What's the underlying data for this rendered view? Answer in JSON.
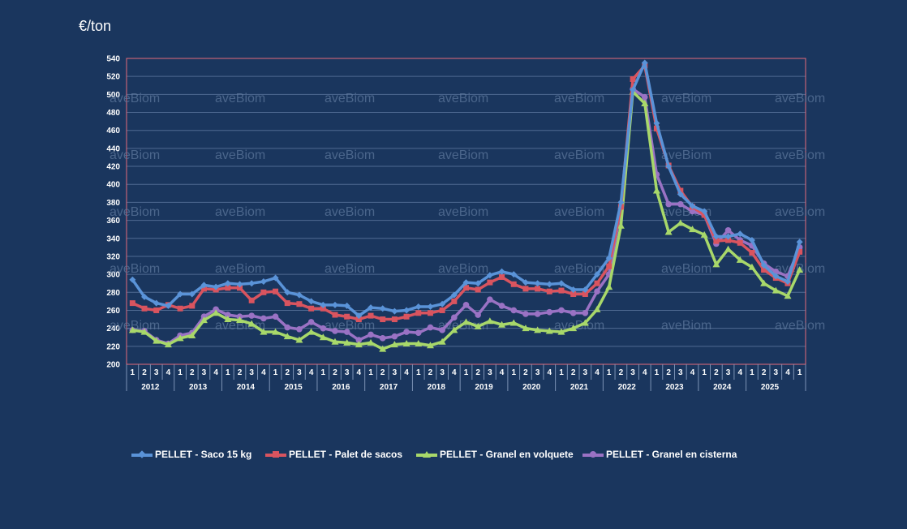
{
  "unit_label": "€/ton",
  "watermark": "aveBiom",
  "colors": {
    "background": "#1a365e",
    "plot_border": "#e46a7a",
    "grid": "#4f6a92",
    "saco": "#5a93d8",
    "palet": "#d9545f",
    "volquete": "#a8d86a",
    "cisterna": "#9a72c4"
  },
  "legend": [
    {
      "label": "PELLET - Saco 15 kg",
      "series": 0,
      "marker": "diamond"
    },
    {
      "label": "PELLET -  Palet de sacos",
      "series": 1,
      "marker": "square"
    },
    {
      "label": "PELLET - Granel en volquete",
      "series": 2,
      "marker": "triangle"
    },
    {
      "label": "PELLET - Granel en cisterna",
      "series": 3,
      "marker": "circle"
    }
  ],
  "chart_data": {
    "type": "line",
    "ylabel": "€/ton",
    "ylim": [
      200,
      540
    ],
    "yticks": [
      200,
      220,
      240,
      260,
      280,
      300,
      320,
      340,
      360,
      380,
      400,
      420,
      440,
      460,
      480,
      500,
      520,
      540
    ],
    "grid": true,
    "legend_position": "bottom",
    "quarters": [
      "1",
      "2",
      "3",
      "4",
      "1",
      "2",
      "3",
      "4",
      "1",
      "2",
      "3",
      "4",
      "1",
      "2",
      "3",
      "4",
      "1",
      "2",
      "3",
      "4",
      "1",
      "2",
      "3",
      "4",
      "1",
      "2",
      "3",
      "4",
      "1",
      "2",
      "3",
      "4",
      "1",
      "2",
      "3",
      "4",
      "1",
      "2",
      "3",
      "4",
      "1",
      "2",
      "3",
      "4",
      "1",
      "2",
      "3",
      "4",
      "1",
      "2",
      "3",
      "4",
      "1",
      "2",
      "3",
      "4",
      "1"
    ],
    "years": [
      "2012",
      "2013",
      "2014",
      "2015",
      "2016",
      "2017",
      "2018",
      "2019",
      "2020",
      "2021",
      "2022",
      "2023",
      "2024",
      "2025"
    ],
    "series": [
      {
        "name": "PELLET - Saco 15 kg",
        "values": [
          294,
          275,
          268,
          265,
          278,
          278,
          288,
          286,
          290,
          289,
          290,
          292,
          296,
          280,
          277,
          270,
          266,
          266,
          265,
          254,
          263,
          262,
          259,
          260,
          264,
          264,
          267,
          277,
          291,
          290,
          299,
          303,
          300,
          291,
          290,
          289,
          290,
          283,
          283,
          300,
          318,
          380,
          505,
          535,
          468,
          420,
          389,
          376,
          370,
          342,
          342,
          345,
          338,
          310,
          298,
          292,
          336
        ]
      },
      {
        "name": "PELLET -  Palet de sacos",
        "values": [
          268,
          262,
          260,
          266,
          262,
          265,
          284,
          283,
          285,
          285,
          271,
          280,
          281,
          268,
          267,
          262,
          262,
          255,
          253,
          250,
          254,
          250,
          250,
          253,
          257,
          257,
          260,
          270,
          285,
          283,
          291,
          297,
          289,
          284,
          284,
          281,
          282,
          278,
          278,
          290,
          309,
          375,
          517,
          532,
          462,
          421,
          393,
          375,
          366,
          337,
          338,
          335,
          324,
          305,
          296,
          290,
          325
        ]
      },
      {
        "name": "PELLET - Granel en volquete",
        "values": [
          238,
          236,
          226,
          222,
          229,
          232,
          249,
          257,
          250,
          249,
          245,
          236,
          236,
          231,
          227,
          236,
          230,
          225,
          224,
          222,
          224,
          217,
          222,
          223,
          223,
          221,
          225,
          238,
          247,
          242,
          248,
          244,
          246,
          240,
          238,
          237,
          236,
          240,
          246,
          261,
          286,
          354,
          503,
          490,
          393,
          347,
          357,
          350,
          344,
          311,
          328,
          316,
          308,
          290,
          282,
          276,
          305
        ]
      },
      {
        "name": "PELLET - Granel en cisterna",
        "values": [
          238,
          237,
          227,
          223,
          232,
          235,
          253,
          261,
          255,
          253,
          254,
          251,
          253,
          241,
          239,
          247,
          240,
          237,
          236,
          227,
          233,
          229,
          231,
          236,
          235,
          241,
          238,
          252,
          266,
          255,
          272,
          265,
          260,
          256,
          256,
          258,
          260,
          257,
          257,
          281,
          300,
          373,
          506,
          497,
          411,
          378,
          378,
          370,
          366,
          334,
          349,
          338,
          332,
          312,
          303,
          298,
          330
        ]
      }
    ]
  }
}
